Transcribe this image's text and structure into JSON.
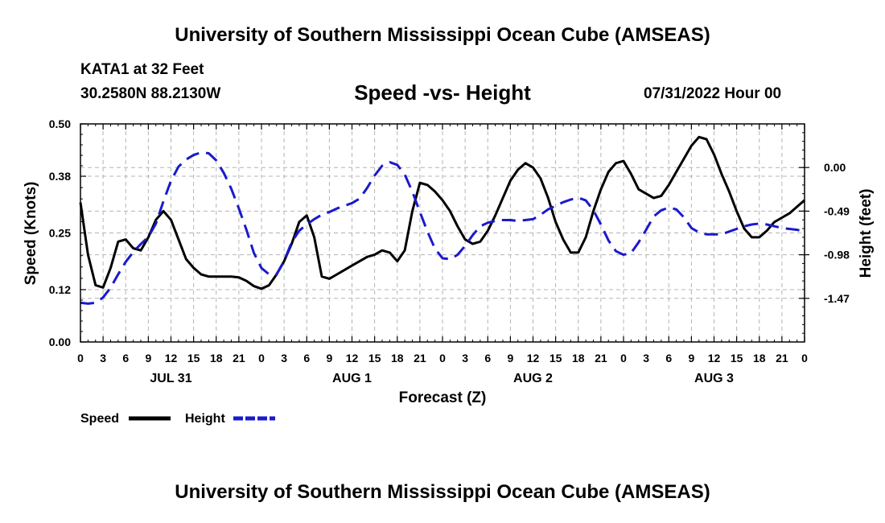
{
  "header": {
    "title": "University of Southern Mississippi Ocean Cube (AMSEAS)",
    "station": "KATA1 at 32 Feet",
    "coords": "30.2580N  88.2130W",
    "subtitle": "Speed -vs- Height",
    "date": "07/31/2022 Hour 00"
  },
  "footer": {
    "title": "University of Southern Mississippi Ocean Cube (AMSEAS)"
  },
  "colors": {
    "speed": "#000000",
    "height": "#1a1acc",
    "grid": "#b4b4b4"
  },
  "chart_data": {
    "type": "line",
    "title": "Speed -vs- Height",
    "xlabel": "Forecast (Z)",
    "ylabel": "Speed (Knots)",
    "y2label": "Height (feet)",
    "xlim": [
      0,
      96
    ],
    "ylim": [
      0,
      0.5
    ],
    "y2lim": [
      -1.96,
      0.49
    ],
    "x_ticks": [
      0,
      3,
      6,
      9,
      12,
      15,
      18,
      21,
      24,
      27,
      30,
      33,
      36,
      39,
      42,
      45,
      48,
      51,
      54,
      57,
      60,
      63,
      66,
      69,
      72,
      75,
      78,
      81,
      84,
      87,
      90,
      93,
      96
    ],
    "x_tick_labels": [
      "0",
      "3",
      "6",
      "9",
      "12",
      "15",
      "18",
      "21",
      "0",
      "3",
      "6",
      "9",
      "12",
      "15",
      "18",
      "21",
      "0",
      "3",
      "6",
      "9",
      "12",
      "15",
      "18",
      "21",
      "0",
      "3",
      "6",
      "9",
      "12",
      "15",
      "18",
      "21",
      "0"
    ],
    "day_labels": [
      {
        "x": 12,
        "label": "JUL 31"
      },
      {
        "x": 36,
        "label": "AUG 1"
      },
      {
        "x": 60,
        "label": "AUG 2"
      },
      {
        "x": 84,
        "label": "AUG 3"
      }
    ],
    "y_ticks": [
      0.0,
      0.12,
      0.25,
      0.38,
      0.5
    ],
    "y_tick_labels": [
      "0.00",
      "0.12",
      "0.25",
      "0.38",
      "0.50"
    ],
    "y2_ticks": [
      0.0,
      -0.49,
      -0.98,
      -1.47
    ],
    "y2_tick_labels": [
      "0.00",
      "-0.49",
      "-0.98",
      "-1.47"
    ],
    "series": [
      {
        "name": "Speed",
        "axis": "left",
        "style": "solid",
        "x": [
          0,
          1,
          2,
          3,
          4,
          5,
          6,
          7,
          8,
          9,
          10,
          11,
          12,
          13,
          14,
          15,
          16,
          17,
          18,
          19,
          20,
          21,
          22,
          23,
          24,
          25,
          26,
          27,
          28,
          29,
          30,
          31,
          32,
          33,
          34,
          35,
          36,
          37,
          38,
          39,
          40,
          41,
          42,
          43,
          44,
          45,
          46,
          47,
          48,
          49,
          50,
          51,
          52,
          53,
          54,
          55,
          56,
          57,
          58,
          59,
          60,
          61,
          62,
          63,
          64,
          65,
          66,
          67,
          68,
          69,
          70,
          71,
          72,
          73,
          74,
          75,
          76,
          77,
          78,
          79,
          80,
          81,
          82,
          83,
          84,
          85,
          86,
          87,
          88,
          89,
          90,
          91,
          92,
          93,
          94,
          95,
          96
        ],
        "values": [
          0.32,
          0.2,
          0.13,
          0.125,
          0.17,
          0.23,
          0.235,
          0.215,
          0.21,
          0.24,
          0.28,
          0.3,
          0.28,
          0.235,
          0.19,
          0.17,
          0.155,
          0.15,
          0.15,
          0.15,
          0.15,
          0.148,
          0.14,
          0.128,
          0.122,
          0.13,
          0.155,
          0.185,
          0.225,
          0.275,
          0.29,
          0.24,
          0.15,
          0.145,
          0.155,
          0.165,
          0.175,
          0.185,
          0.195,
          0.2,
          0.21,
          0.205,
          0.185,
          0.21,
          0.3,
          0.365,
          0.36,
          0.345,
          0.325,
          0.3,
          0.265,
          0.235,
          0.225,
          0.23,
          0.255,
          0.29,
          0.33,
          0.37,
          0.395,
          0.41,
          0.4,
          0.375,
          0.33,
          0.275,
          0.235,
          0.205,
          0.205,
          0.24,
          0.3,
          0.35,
          0.39,
          0.41,
          0.415,
          0.385,
          0.35,
          0.34,
          0.33,
          0.335,
          0.36,
          0.39,
          0.42,
          0.45,
          0.47,
          0.465,
          0.43,
          0.385,
          0.345,
          0.3,
          0.26,
          0.24,
          0.24,
          0.255,
          0.275,
          0.285,
          0.295,
          0.31,
          0.325
        ]
      },
      {
        "name": "Height",
        "axis": "right",
        "style": "dashed",
        "x": [
          0,
          1,
          2,
          3,
          4,
          5,
          6,
          7,
          8,
          9,
          10,
          11,
          12,
          13,
          14,
          15,
          16,
          17,
          18,
          19,
          20,
          21,
          22,
          23,
          24,
          25,
          26,
          27,
          28,
          29,
          30,
          31,
          32,
          33,
          34,
          35,
          36,
          37,
          38,
          39,
          40,
          41,
          42,
          43,
          44,
          45,
          46,
          47,
          48,
          49,
          50,
          51,
          52,
          53,
          54,
          55,
          56,
          57,
          58,
          59,
          60,
          61,
          62,
          63,
          64,
          65,
          66,
          67,
          68,
          69,
          70,
          71,
          72,
          73,
          74,
          75,
          76,
          77,
          78,
          79,
          80,
          81,
          82,
          83,
          84,
          85,
          86,
          87,
          88,
          89,
          90,
          91,
          92,
          93,
          94,
          95,
          96
        ],
        "values": [
          -1.52,
          -1.53,
          -1.52,
          -1.46,
          -1.35,
          -1.2,
          -1.06,
          -0.95,
          -0.86,
          -0.78,
          -0.63,
          -0.38,
          -0.15,
          0.01,
          0.09,
          0.14,
          0.17,
          0.16,
          0.08,
          -0.06,
          -0.24,
          -0.46,
          -0.7,
          -0.96,
          -1.13,
          -1.2,
          -1.2,
          -1.05,
          -0.84,
          -0.71,
          -0.64,
          -0.58,
          -0.53,
          -0.5,
          -0.46,
          -0.43,
          -0.4,
          -0.35,
          -0.23,
          -0.09,
          0.02,
          0.06,
          0.03,
          -0.08,
          -0.27,
          -0.5,
          -0.72,
          -0.91,
          -1.02,
          -1.03,
          -0.98,
          -0.88,
          -0.76,
          -0.66,
          -0.62,
          -0.6,
          -0.59,
          -0.59,
          -0.6,
          -0.59,
          -0.58,
          -0.53,
          -0.47,
          -0.43,
          -0.39,
          -0.36,
          -0.34,
          -0.37,
          -0.48,
          -0.64,
          -0.82,
          -0.94,
          -0.98,
          -0.96,
          -0.84,
          -0.7,
          -0.55,
          -0.48,
          -0.45,
          -0.47,
          -0.56,
          -0.68,
          -0.73,
          -0.75,
          -0.75,
          -0.75,
          -0.72,
          -0.69,
          -0.66,
          -0.64,
          -0.63,
          -0.64,
          -0.66,
          -0.68,
          -0.69,
          -0.7,
          -0.72
        ]
      }
    ],
    "legend": [
      {
        "label": "Speed",
        "style": "solid"
      },
      {
        "label": "Height",
        "style": "dashed"
      }
    ],
    "legend_position": "bottom-left"
  }
}
